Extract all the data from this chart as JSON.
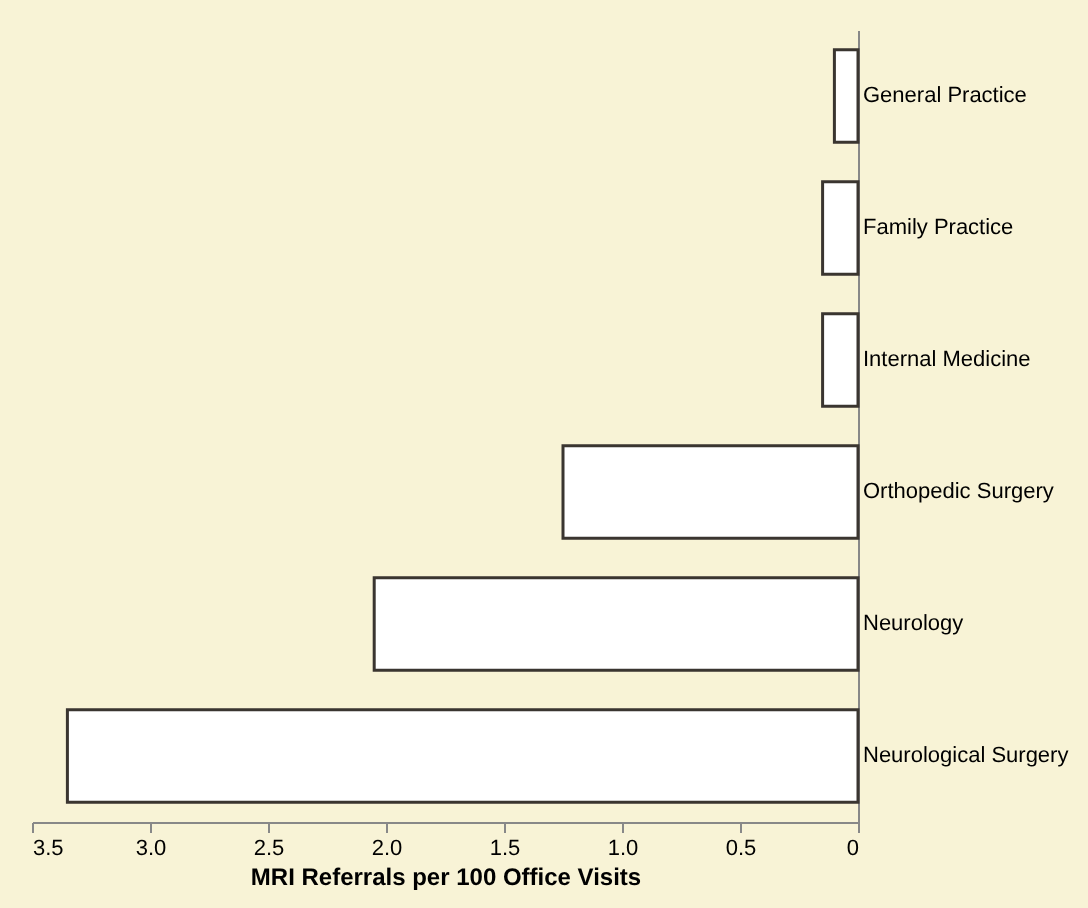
{
  "chart_data": {
    "type": "bar",
    "orientation": "horizontal",
    "categories": [
      "General Practice",
      "Family Practice",
      "Internal Medicine",
      "Orthopedic Surgery",
      "Neurology",
      "Neurological Surgery"
    ],
    "values": [
      0.1,
      0.15,
      0.15,
      1.25,
      2.05,
      3.35
    ],
    "color": "#ffffff",
    "xlabel": "MRI Referrals per 100 Office Visits",
    "xlim": [
      3.5,
      0
    ],
    "xticks": [
      3.5,
      {
        "value": 3,
        "label": "3.0"
      },
      2.5,
      {
        "value": 2,
        "label": "2.0"
      },
      1.5,
      {
        "value": 1,
        "label": "1.0"
      },
      0.5,
      0
    ],
    "grid": false
  }
}
